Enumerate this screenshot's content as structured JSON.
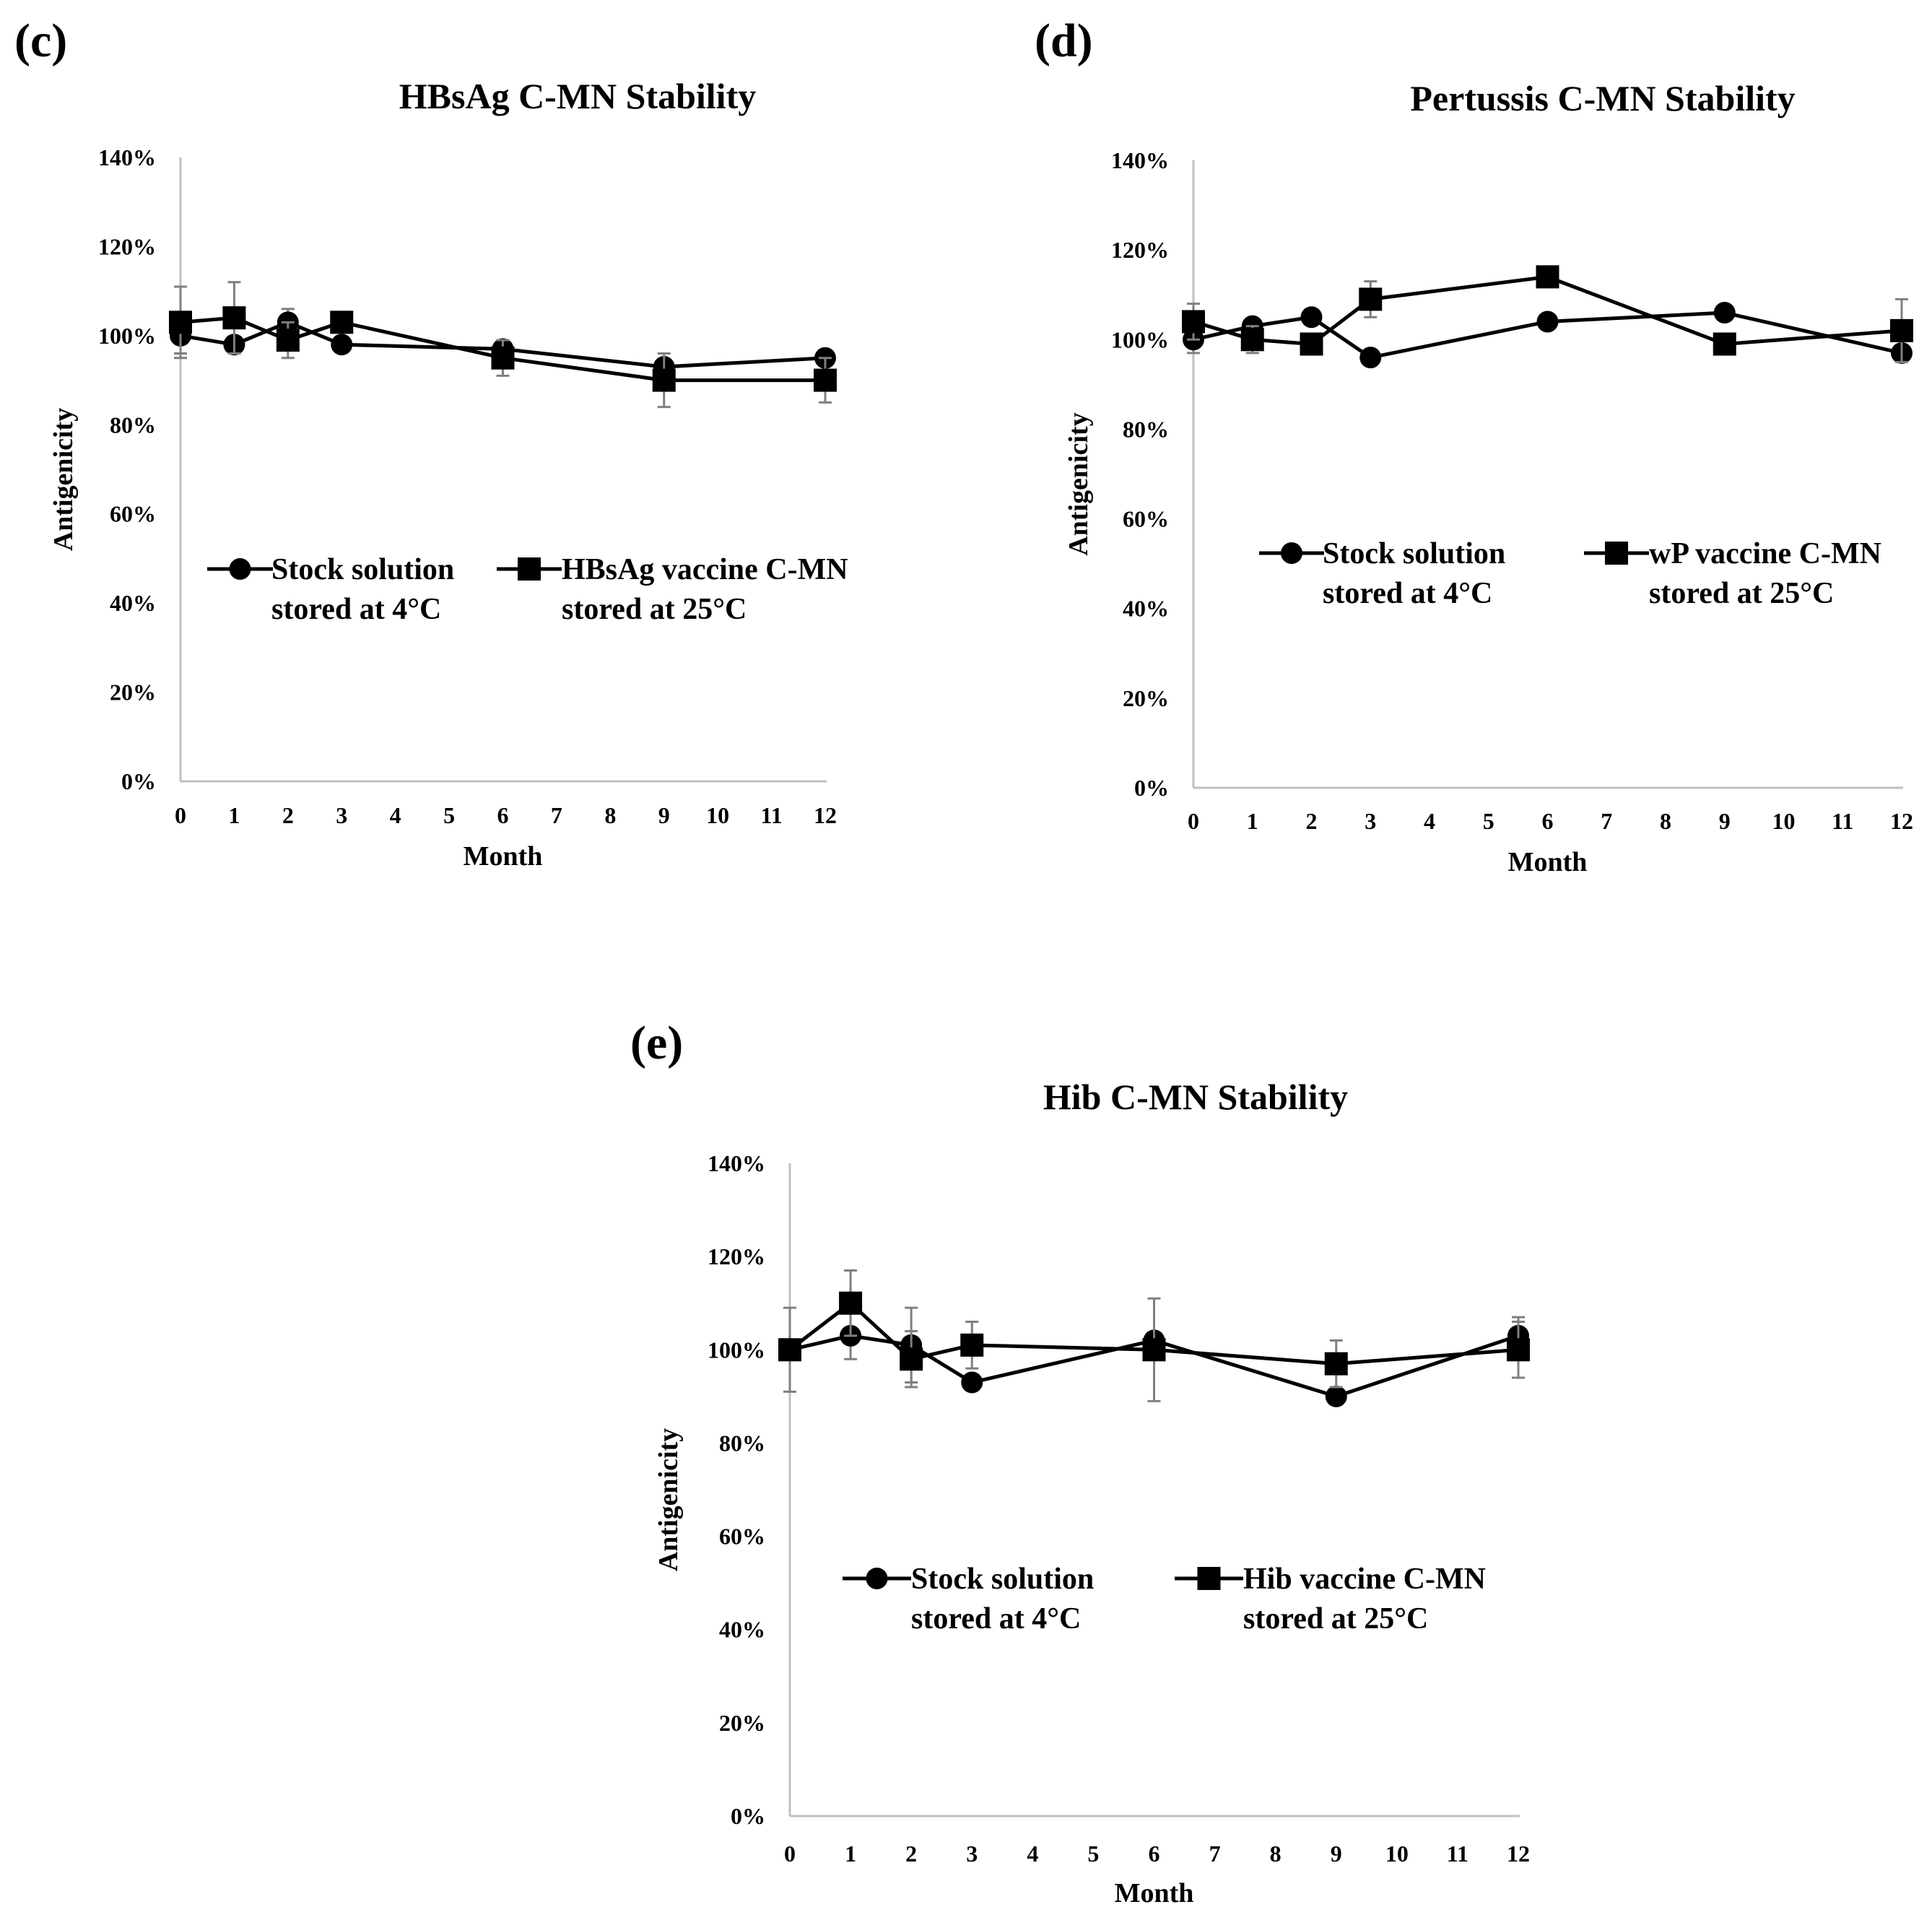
{
  "chart_data": [
    {
      "type": "line",
      "panel_label": "(c)",
      "title": "HBsAg C-MN Stability",
      "xlabel": "Month",
      "ylabel": "Antigenicity",
      "xlim": [
        0,
        12
      ],
      "ylim": [
        0,
        140
      ],
      "x_ticks": [
        "0",
        "1",
        "2",
        "3",
        "4",
        "5",
        "6",
        "7",
        "8",
        "9",
        "10",
        "11",
        "12"
      ],
      "y_ticks": [
        "0%",
        "20%",
        "40%",
        "60%",
        "80%",
        "100%",
        "120%",
        "140%"
      ],
      "grid": false,
      "series": [
        {
          "name": "Stock solution stored at 4°C",
          "legend_lines": [
            "Stock solution",
            "stored at 4°C"
          ],
          "marker": "circle",
          "x": [
            0,
            1,
            2,
            3,
            6,
            9,
            12
          ],
          "y": [
            100,
            98,
            103,
            98,
            97,
            93,
            95
          ],
          "err": [
            4,
            0,
            3,
            0,
            2,
            0,
            0
          ]
        },
        {
          "name": "HBsAg vaccine C-MN stored at 25°C",
          "legend_lines": [
            "HBsAg vaccine C-MN",
            "stored at 25°C"
          ],
          "marker": "square",
          "x": [
            0,
            1,
            2,
            3,
            6,
            9,
            12
          ],
          "y": [
            103,
            104,
            99,
            103,
            95,
            90,
            90
          ],
          "err": [
            8,
            8,
            4,
            0,
            4,
            6,
            5
          ]
        }
      ]
    },
    {
      "type": "line",
      "panel_label": "(d)",
      "title": "Pertussis C-MN Stability",
      "xlabel": "Month",
      "ylabel": "Antigenicity",
      "xlim": [
        0,
        12
      ],
      "ylim": [
        0,
        140
      ],
      "x_ticks": [
        "0",
        "1",
        "2",
        "3",
        "4",
        "5",
        "6",
        "7",
        "8",
        "9",
        "10",
        "11",
        "12"
      ],
      "y_ticks": [
        "0%",
        "20%",
        "40%",
        "60%",
        "80%",
        "100%",
        "120%",
        "140%"
      ],
      "grid": false,
      "series": [
        {
          "name": "Stock solution stored at 4°C",
          "legend_lines": [
            "Stock solution",
            "stored at 4°C"
          ],
          "marker": "circle",
          "x": [
            0,
            1,
            2,
            3,
            6,
            9,
            12
          ],
          "y": [
            100,
            103,
            105,
            96,
            104,
            106,
            97
          ],
          "err": [
            3,
            0,
            0,
            0,
            0,
            0,
            0
          ]
        },
        {
          "name": "wP vaccine C-MN stored at 25°C",
          "legend_lines": [
            "wP vaccine C-MN",
            "stored at 25°C"
          ],
          "marker": "square",
          "x": [
            0,
            1,
            2,
            3,
            6,
            9,
            12
          ],
          "y": [
            104,
            100,
            99,
            109,
            114,
            99,
            102
          ],
          "err": [
            4,
            3,
            0,
            4,
            0,
            0,
            7
          ]
        }
      ]
    },
    {
      "type": "line",
      "panel_label": "(e)",
      "title": "Hib C-MN Stability",
      "xlabel": "Month",
      "ylabel": "Antigenicity",
      "xlim": [
        0,
        12
      ],
      "ylim": [
        0,
        140
      ],
      "x_ticks": [
        "0",
        "1",
        "2",
        "3",
        "4",
        "5",
        "6",
        "7",
        "8",
        "9",
        "10",
        "11",
        "12"
      ],
      "y_ticks": [
        "0%",
        "20%",
        "40%",
        "60%",
        "80%",
        "100%",
        "120%",
        "140%"
      ],
      "grid": false,
      "series": [
        {
          "name": "Stock solution stored at 4°C",
          "legend_lines": [
            "Stock solution",
            "stored at 4°C"
          ],
          "marker": "circle",
          "x": [
            0,
            1,
            2,
            3,
            6,
            9,
            12
          ],
          "y": [
            100,
            103,
            101,
            93,
            102,
            90,
            103
          ],
          "err": [
            0,
            5,
            8,
            0,
            0,
            0,
            4
          ]
        },
        {
          "name": "Hib vaccine C-MN stored at 25°C",
          "legend_lines": [
            "Hib vaccine C-MN",
            "stored at 25°C"
          ],
          "marker": "square",
          "x": [
            0,
            1,
            2,
            3,
            6,
            9,
            12
          ],
          "y": [
            100,
            110,
            98,
            101,
            100,
            97,
            100
          ],
          "err": [
            9,
            7,
            6,
            5,
            11,
            5,
            6
          ]
        }
      ]
    }
  ]
}
